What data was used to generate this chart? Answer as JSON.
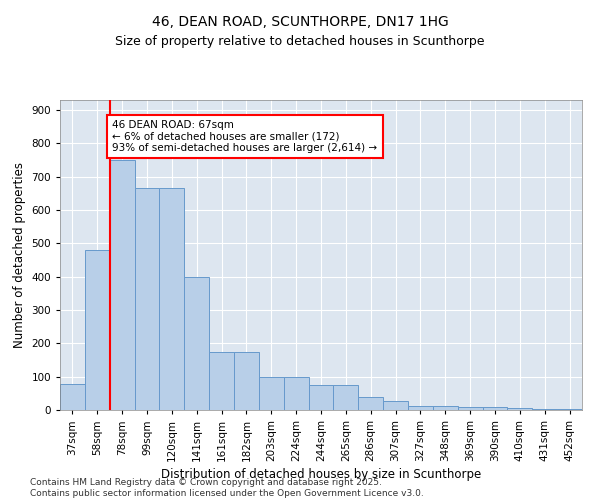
{
  "title": "46, DEAN ROAD, SCUNTHORPE, DN17 1HG",
  "subtitle": "Size of property relative to detached houses in Scunthorpe",
  "xlabel": "Distribution of detached houses by size in Scunthorpe",
  "ylabel": "Number of detached properties",
  "categories": [
    "37sqm",
    "58sqm",
    "78sqm",
    "99sqm",
    "120sqm",
    "141sqm",
    "161sqm",
    "182sqm",
    "203sqm",
    "224sqm",
    "244sqm",
    "265sqm",
    "286sqm",
    "307sqm",
    "327sqm",
    "348sqm",
    "369sqm",
    "390sqm",
    "410sqm",
    "431sqm",
    "452sqm"
  ],
  "values": [
    78,
    480,
    750,
    667,
    667,
    398,
    175,
    175,
    100,
    100,
    75,
    75,
    40,
    27,
    13,
    13,
    10,
    10,
    6,
    3,
    3
  ],
  "bar_color": "#b8cfe8",
  "bar_edge_color": "#6699cc",
  "vline_x": 1.5,
  "vline_color": "red",
  "annotation_text": "46 DEAN ROAD: 67sqm\n← 6% of detached houses are smaller (172)\n93% of semi-detached houses are larger (2,614) →",
  "annotation_box_color": "white",
  "annotation_box_edge_color": "red",
  "ylim": [
    0,
    930
  ],
  "yticks": [
    0,
    100,
    200,
    300,
    400,
    500,
    600,
    700,
    800,
    900
  ],
  "background_color": "#dde6f0",
  "footer": "Contains HM Land Registry data © Crown copyright and database right 2025.\nContains public sector information licensed under the Open Government Licence v3.0.",
  "title_fontsize": 10,
  "subtitle_fontsize": 9,
  "xlabel_fontsize": 8.5,
  "ylabel_fontsize": 8.5,
  "tick_fontsize": 7.5,
  "annotation_fontsize": 7.5,
  "footer_fontsize": 6.5
}
